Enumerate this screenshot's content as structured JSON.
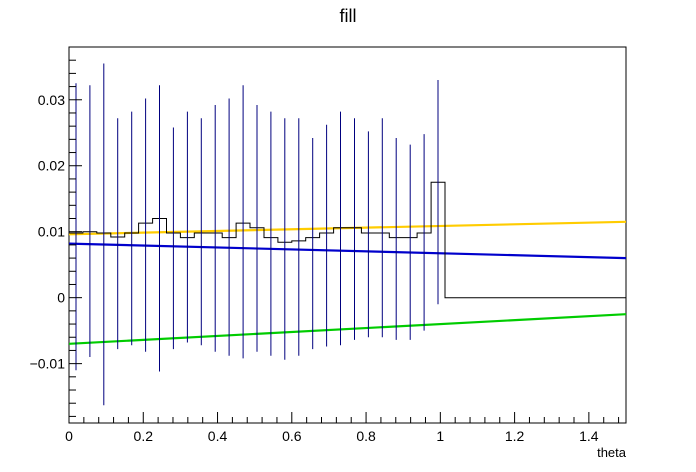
{
  "chart_data": {
    "type": "line",
    "title": "fill",
    "xlabel": "theta",
    "ylabel": "",
    "xlim": [
      0,
      1.5
    ],
    "ylim": [
      -0.019,
      0.038
    ],
    "grid": false,
    "legend": "none",
    "x_ticks": [
      0,
      0.2,
      0.4,
      0.6,
      0.8,
      1,
      1.2,
      1.4
    ],
    "x_tick_labels": [
      "0",
      "0.2",
      "0.4",
      "0.6",
      "0.8",
      "1",
      "1.2",
      "1.4"
    ],
    "y_ticks": [
      -0.01,
      0,
      0.01,
      0.02,
      0.03
    ],
    "y_tick_labels": [
      "−0.01",
      "0",
      "0.01",
      "0.02",
      "0.03"
    ],
    "histogram": {
      "color": "#000000",
      "error_color": "#00007f",
      "bin_edges": [
        0,
        0.0375,
        0.075,
        0.1125,
        0.15,
        0.1875,
        0.225,
        0.2625,
        0.3,
        0.3375,
        0.375,
        0.4125,
        0.45,
        0.4875,
        0.525,
        0.5625,
        0.6,
        0.6375,
        0.675,
        0.7125,
        0.75,
        0.7875,
        0.825,
        0.8625,
        0.9,
        0.9375,
        0.975,
        1.0125,
        1.05,
        1.5
      ],
      "values": [
        0.0098,
        0.01,
        0.0098,
        0.0092,
        0.0098,
        0.0113,
        0.012,
        0.0098,
        0.0091,
        0.0098,
        0.0098,
        0.0091,
        0.0113,
        0.0106,
        0.0091,
        0.0084,
        0.0086,
        0.0091,
        0.0098,
        0.0106,
        0.0106,
        0.0098,
        0.0098,
        0.0091,
        0.0091,
        0.0098,
        0.0175,
        0.0,
        0.0
      ],
      "error_high": [
        0.0325,
        0.0322,
        0.0355,
        0.0272,
        0.0282,
        0.0302,
        0.0322,
        0.0258,
        0.0282,
        0.0272,
        0.0292,
        0.0302,
        0.0322,
        0.0292,
        0.0282,
        0.0272,
        0.0272,
        0.0242,
        0.0262,
        0.0282,
        0.0272,
        0.0252,
        0.0272,
        0.0242,
        0.0232,
        0.0248,
        0.033,
        null,
        null
      ],
      "error_low": [
        -0.011,
        -0.009,
        -0.0163,
        -0.0078,
        -0.0072,
        -0.0082,
        -0.0112,
        -0.0078,
        -0.0068,
        -0.0072,
        -0.0082,
        -0.0088,
        -0.0092,
        -0.0082,
        -0.0088,
        -0.0094,
        -0.0088,
        -0.0078,
        -0.0074,
        -0.0072,
        -0.0064,
        -0.006,
        -0.006,
        -0.0064,
        -0.0064,
        -0.005,
        -0.001,
        null,
        null
      ]
    },
    "series": [
      {
        "color": "#ffcc00",
        "x": [
          0,
          1.5
        ],
        "y": [
          0.0096,
          0.0115
        ]
      },
      {
        "color": "#0000cc",
        "x": [
          0,
          1.5
        ],
        "y": [
          0.0082,
          0.006
        ]
      },
      {
        "color": "#00cc00",
        "x": [
          0,
          1.5
        ],
        "y": [
          -0.007,
          -0.0025
        ]
      }
    ]
  }
}
